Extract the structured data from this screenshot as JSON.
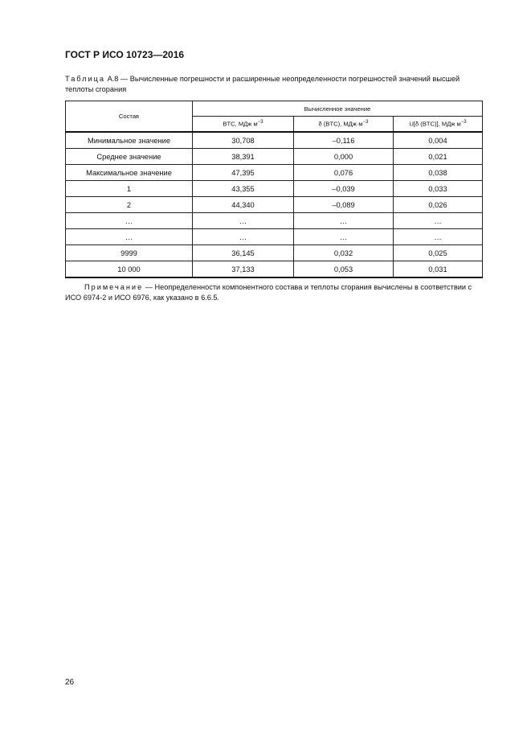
{
  "header": {
    "title": "ГОСТ Р ИСО 10723—2016"
  },
  "caption": {
    "label": "Таблица",
    "number": "А.8",
    "text": "— Вычисленные погрешности и расширенные неопределенности погрешностей значений высшей теплоты сгорания"
  },
  "table": {
    "col0": "Состав",
    "group": "Вычисленное значение",
    "cols": [
      {
        "label": "BTC, МДж м",
        "unit_exp": "−3"
      },
      {
        "label": "δ (BTC), МДж·м",
        "unit_exp": "−3"
      },
      {
        "label": "U[δ (BTC)], МДж м",
        "unit_exp": "−3"
      }
    ],
    "rows": [
      [
        "Минимальное значение",
        "30,708",
        "–0,116",
        "0,004"
      ],
      [
        "Среднее значение",
        "38,391",
        "0,000",
        "0,021"
      ],
      [
        "Максимальное значение",
        "47,395",
        "0,076",
        "0,038"
      ],
      [
        "1",
        "43,355",
        "–0,039",
        "0,033"
      ],
      [
        "2",
        "44,340",
        "–0,089",
        "0,026"
      ],
      [
        "…",
        "…",
        "…",
        "…"
      ],
      [
        "…",
        "…",
        "…",
        "…"
      ],
      [
        "9999",
        "36,145",
        "0,032",
        "0,025"
      ],
      [
        "10 000",
        "37,133",
        "0,053",
        "0,031"
      ]
    ]
  },
  "note": {
    "label": "Примечание",
    "text": "— Неопределенности компонентного состава и теплоты сгорания вычислены в соответствии с ИСО 6974-2 и ИСО 6976, как указано в 6.6.5."
  },
  "page_number": "26"
}
